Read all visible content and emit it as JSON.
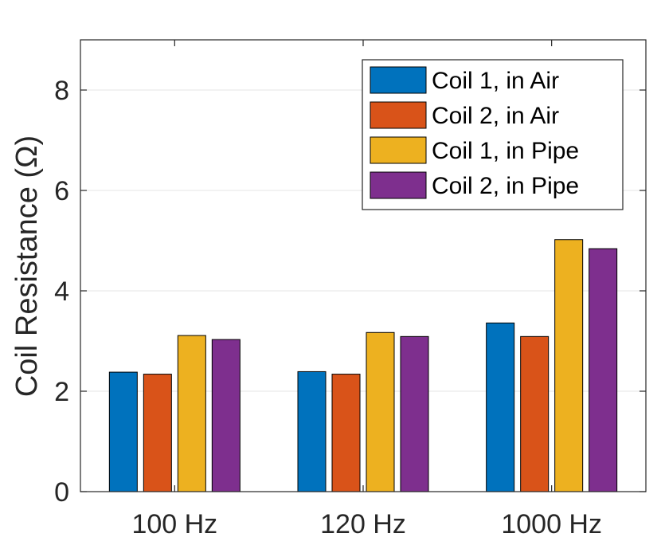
{
  "chart_data": {
    "type": "bar",
    "title": "",
    "xlabel": "",
    "ylabel": "Coil Resistance (Ω)",
    "categories": [
      "100 Hz",
      "120 Hz",
      "1000 Hz"
    ],
    "ylim": [
      0,
      9
    ],
    "yticks": [
      0,
      2,
      4,
      6,
      8
    ],
    "grid": true,
    "legend_position": "top-right",
    "series": [
      {
        "name": "Coil 1, in Air",
        "color": "#0072BD",
        "values": [
          2.38,
          2.39,
          3.36
        ]
      },
      {
        "name": "Coil 2, in Air",
        "color": "#D95319",
        "values": [
          2.34,
          2.34,
          3.09
        ]
      },
      {
        "name": "Coil 1, in Pipe",
        "color": "#EDB120",
        "values": [
          3.11,
          3.17,
          5.02
        ]
      },
      {
        "name": "Coil 2, in Pipe",
        "color": "#7E2F8E",
        "values": [
          3.03,
          3.09,
          4.84
        ]
      }
    ]
  }
}
